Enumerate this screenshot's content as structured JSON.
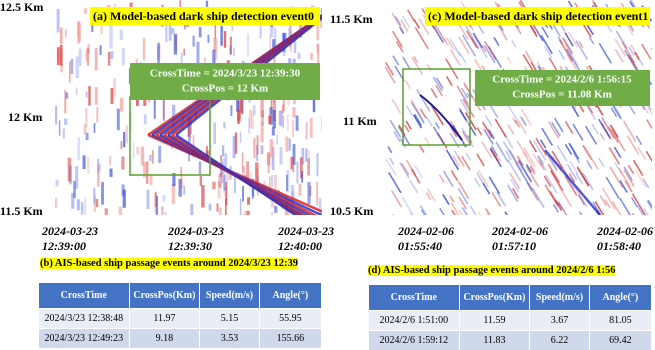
{
  "panels": [
    {
      "title": "(a) Model-based dark ship detection event0",
      "y_labels": [
        "12.5 Km",
        "12 Km",
        "11.5 Km"
      ],
      "x_labels": [
        [
          "2024-03-23",
          "12:39:00"
        ],
        [
          "2024-03-23",
          "12:39:30"
        ],
        [
          "2024-03-23",
          "12:40:00"
        ]
      ],
      "annotation": [
        "CrossTime = 2024/3/23 12:39:30",
        "CrossPos = 12 Km"
      ]
    },
    {
      "title": "(c) Model-based dark ship detection event1",
      "y_labels": [
        "11.5 Km",
        "11 Km",
        "10.5 Km"
      ],
      "x_labels": [
        [
          "2024-02-06",
          "01:55:40"
        ],
        [
          "2024-02-06",
          "01:57:10"
        ],
        [
          "2024-02-06",
          "01:58:40"
        ]
      ],
      "annotation": [
        "CrossTime = 2024/2/6 1:56:15",
        "CrossPos = 11.08 Km"
      ]
    }
  ],
  "tables": [
    {
      "caption": "(b) AIS-based ship passage events around 2024/3/23 12:39",
      "header": [
        "CrossTime",
        "CrossPos(Km)",
        "Speed(m/s)",
        "Angle(°)"
      ],
      "rows": [
        [
          "2024/3/23 12:38:48",
          "11.97",
          "5.15",
          "55.95"
        ],
        [
          "2024/3/23 12:49:23",
          "9.18",
          "3.53",
          "155.66"
        ]
      ]
    },
    {
      "caption": "(d) AIS-based ship passage events around 2024/2/6 1:56",
      "header": [
        "CrossTime",
        "CrossPos(Km)",
        "Speed(m/s)",
        "Angle(°)"
      ],
      "rows": [
        [
          "2024/2/6 1:51:00",
          "11.59",
          "3.67",
          "81.05"
        ],
        [
          "2024/2/6 1:59:12",
          "11.83",
          "6.22",
          "69.42"
        ]
      ]
    }
  ]
}
